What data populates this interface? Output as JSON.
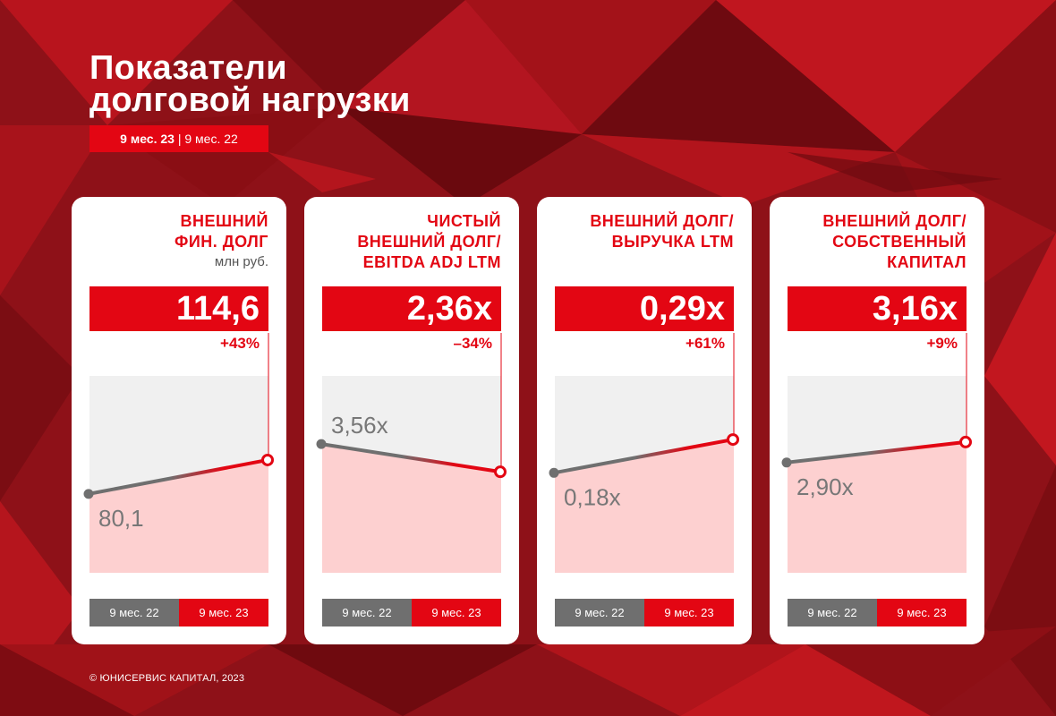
{
  "header": {
    "title_line1": "Показатели",
    "title_line2": "долговой нагрузки",
    "period_current": "9 мес. 23",
    "period_separator": " | ",
    "period_previous": "9 мес. 22"
  },
  "colors": {
    "accent": "#e30613",
    "previous": "#6f6f6f",
    "plot_bg": "#f0f0f0",
    "plot_fill": "#fdd0d0"
  },
  "footer": {
    "copyright": "© ЮНИСЕРВИС КАПИТАЛ, 2023"
  },
  "chart_data": [
    {
      "type": "line",
      "title": "ВНЕШНИЙ\nФИН. ДОЛГ",
      "unit": "млн руб.",
      "categories": [
        "9 мес. 22",
        "9 мес. 23"
      ],
      "values": [
        80.1,
        114.6
      ],
      "previous_label": "80,1",
      "current_label": "114,6",
      "change": "+43%"
    },
    {
      "type": "line",
      "title": "ЧИСТЫЙ\nВНЕШНИЙ ДОЛГ/\nEBITDA ADJ LTM",
      "unit": "",
      "categories": [
        "9 мес. 22",
        "9 мес. 23"
      ],
      "values": [
        3.56,
        2.36
      ],
      "previous_label": "3,56x",
      "current_label": "2,36x",
      "change": "–34%"
    },
    {
      "type": "line",
      "title": "ВНЕШНИЙ ДОЛГ/\nВЫРУЧКА LTM",
      "unit": "",
      "categories": [
        "9 мес. 22",
        "9 мес. 23"
      ],
      "values": [
        0.18,
        0.29
      ],
      "previous_label": "0,18x",
      "current_label": "0,29x",
      "change": "+61%"
    },
    {
      "type": "line",
      "title": "ВНЕШНИЙ ДОЛГ/\nСОБСТВЕННЫЙ\nКАПИТАЛ",
      "unit": "",
      "categories": [
        "9 мес. 22",
        "9 мес. 23"
      ],
      "values": [
        2.9,
        3.16
      ],
      "previous_label": "2,90x",
      "current_label": "3,16x",
      "change": "+9%"
    }
  ]
}
